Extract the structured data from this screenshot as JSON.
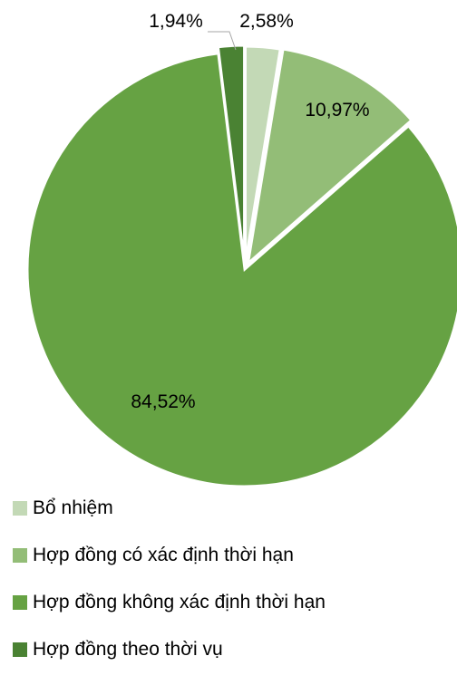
{
  "chart_data": {
    "type": "pie",
    "title": "",
    "start_angle_deg": 0,
    "direction": "clockwise",
    "exploded": true,
    "legend_position": "bottom",
    "slices": [
      {
        "label": "Bổ nhiệm",
        "value": 2.58,
        "value_label": "2,58%",
        "color": "#c3d9b6"
      },
      {
        "label": "Hợp đồng có xác định thời hạn",
        "value": 10.97,
        "value_label": "10,97%",
        "color": "#93bd77"
      },
      {
        "label": "Hợp đồng không xác định thời hạn",
        "value": 84.52,
        "value_label": "84,52%",
        "color": "#66a243"
      },
      {
        "label": "Hợp đồng theo thời vụ",
        "value": 1.94,
        "value_label": "1,94%",
        "color": "#4a8233"
      }
    ]
  }
}
